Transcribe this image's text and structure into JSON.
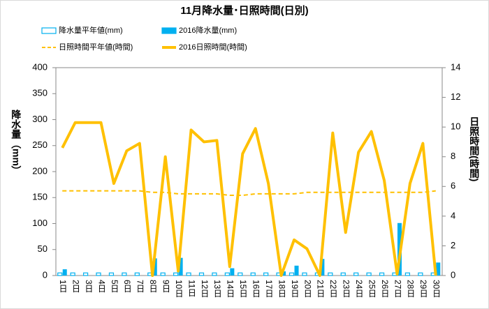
{
  "chart_data": {
    "type": "bar",
    "title": "11月降水量･日照時間(日別)",
    "y_label": "降水量（mm）",
    "y2_label": "日照時間(時間)",
    "categories": [
      "1日",
      "2日",
      "3日",
      "4日",
      "5日",
      "6日",
      "7日",
      "8日",
      "9日",
      "10日",
      "11日",
      "12日",
      "13日",
      "14日",
      "15日",
      "16日",
      "17日",
      "18日",
      "19日",
      "20日",
      "21日",
      "22日",
      "23日",
      "24日",
      "25日",
      "26日",
      "27日",
      "28日",
      "29日",
      "30日"
    ],
    "series": [
      {
        "name": "降水量平年値(mm)",
        "color": "#00b0f0",
        "kind": "hollow-bar",
        "values": [
          5,
          5,
          5,
          5,
          5,
          5,
          5,
          5,
          5,
          5,
          5,
          5,
          5,
          5,
          5,
          5,
          5,
          5,
          5,
          5,
          5,
          5,
          5,
          5,
          5,
          5,
          5,
          5,
          5,
          5
        ]
      },
      {
        "name": "2016降水量(mm)",
        "color": "#00b0f0",
        "kind": "bar",
        "values": [
          12,
          0,
          0,
          0,
          0,
          0,
          0,
          33,
          0,
          34,
          0,
          0,
          0,
          14,
          0,
          0,
          0,
          8,
          19,
          0,
          32,
          0,
          0,
          0,
          0,
          0,
          101,
          0,
          0,
          25
        ]
      },
      {
        "name": "日照時間平年値(時間)",
        "color": "#ffc000",
        "kind": "dashed-line",
        "axis": "y2",
        "values": [
          5.7,
          5.7,
          5.7,
          5.7,
          5.7,
          5.7,
          5.7,
          5.6,
          5.6,
          5.5,
          5.5,
          5.5,
          5.5,
          5.4,
          5.4,
          5.5,
          5.5,
          5.5,
          5.5,
          5.6,
          5.6,
          5.6,
          5.6,
          5.6,
          5.6,
          5.6,
          5.6,
          5.6,
          5.6,
          5.7
        ]
      },
      {
        "name": "2016日照時間(時間)",
        "color": "#ffc000",
        "kind": "line",
        "axis": "y2",
        "values": [
          8.6,
          10.3,
          10.3,
          10.3,
          6.2,
          8.4,
          8.9,
          0,
          8.0,
          0.3,
          9.8,
          9.0,
          9.1,
          0.6,
          8.2,
          9.9,
          6.2,
          0,
          2.4,
          1.8,
          0,
          9.6,
          2.9,
          8.3,
          9.7,
          6.4,
          0.1,
          6.2,
          8.9,
          0
        ]
      }
    ],
    "ylim": [
      0,
      400
    ],
    "yticks": [
      0,
      50,
      100,
      150,
      200,
      250,
      300,
      350,
      400
    ],
    "y2lim": [
      0,
      14
    ],
    "y2ticks": [
      0,
      2,
      4,
      6,
      8,
      10,
      12,
      14
    ],
    "grid": false
  }
}
